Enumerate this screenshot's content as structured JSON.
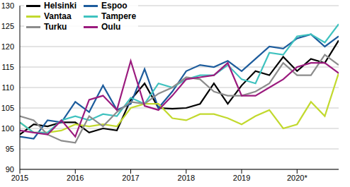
{
  "chart_data": {
    "type": "line",
    "x": [
      2015,
      2015.25,
      2015.5,
      2015.75,
      2016,
      2016.25,
      2016.5,
      2016.75,
      2017,
      2017.25,
      2017.5,
      2017.75,
      2018,
      2018.25,
      2018.5,
      2018.75,
      2019,
      2019.25,
      2019.5,
      2019.75,
      2020,
      2020.25,
      2020.5,
      2020.75
    ],
    "series": [
      {
        "name": "Helsinki",
        "color": "#000000",
        "values": [
          98.5,
          101,
          100.5,
          101.5,
          101.5,
          99,
          100,
          99.5,
          107,
          111,
          105,
          104.8,
          105,
          106,
          111,
          106,
          110.5,
          114,
          113,
          117.5,
          114,
          117,
          116,
          121.5
        ]
      },
      {
        "name": "Espoo",
        "color": "#1d5c9c",
        "values": [
          98,
          97.5,
          102,
          101.5,
          106.5,
          104,
          110.5,
          104.5,
          106,
          114.5,
          105,
          109,
          114,
          115.5,
          115,
          116.5,
          114,
          117,
          120,
          119.5,
          122,
          123,
          120,
          122.5
        ]
      },
      {
        "name": "Vantaa",
        "color": "#c2d92e",
        "values": [
          101.5,
          99,
          99,
          99.5,
          101,
          100.5,
          101,
          100.5,
          105,
          106,
          106,
          102.5,
          102,
          103.5,
          103.5,
          102.5,
          101,
          103,
          104.5,
          100,
          101,
          106.5,
          103,
          113.5
        ]
      },
      {
        "name": "Tampere",
        "color": "#3fc2bf",
        "values": [
          101.5,
          99,
          99,
          102,
          103,
          102,
          103.5,
          103,
          107.5,
          106,
          111,
          110,
          112,
          113,
          113,
          115.5,
          112,
          111,
          118.5,
          118,
          122.5,
          123,
          121,
          125.5
        ]
      },
      {
        "name": "Turku",
        "color": "#8c8c8c",
        "values": [
          103,
          102,
          98.5,
          97,
          96.5,
          103,
          100.5,
          104,
          106.5,
          106,
          108.5,
          110,
          112.5,
          112,
          109,
          108,
          108,
          109,
          111,
          116,
          113,
          113,
          118,
          115.5
        ]
      },
      {
        "name": "Oulu",
        "color": "#9b1b7e",
        "values": [
          99.5,
          99,
          98.5,
          102,
          98,
          107,
          108,
          104.5,
          116.5,
          105.5,
          104.5,
          108,
          112,
          112.5,
          113,
          116,
          108,
          108,
          110,
          112,
          115,
          116,
          116,
          113.5
        ]
      }
    ],
    "xlim": [
      2015,
      2020.75
    ],
    "xticks": [
      2015,
      2016,
      2017,
      2018,
      2019,
      {
        "value": 2020,
        "label": "2020*"
      }
    ],
    "ylim": [
      90,
      130
    ],
    "yticks": [
      90,
      95,
      100,
      105,
      110,
      115,
      120,
      125,
      130
    ],
    "grid": true,
    "legend": "upper left"
  }
}
